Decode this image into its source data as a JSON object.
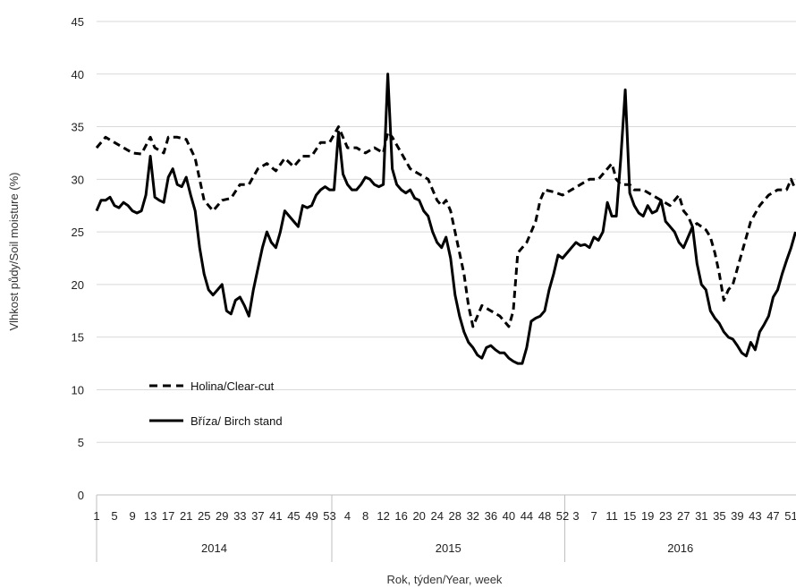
{
  "chart_data": {
    "type": "line",
    "title": "",
    "xlabel": "Rok, týden/Year, week",
    "ylabel": "Vlhkost půdy/Soil moisture (%)",
    "ylim": [
      0,
      45
    ],
    "yticks": [
      0,
      5,
      10,
      15,
      20,
      25,
      30,
      35,
      40,
      45
    ],
    "grid": "horizontal",
    "legend_position": "lower-left",
    "x_tick_labels": [
      "1",
      "5",
      "9",
      "13",
      "17",
      "21",
      "25",
      "29",
      "33",
      "37",
      "41",
      "45",
      "49",
      "53",
      "4",
      "8",
      "12",
      "16",
      "20",
      "24",
      "28",
      "32",
      "36",
      "40",
      "44",
      "48",
      "52",
      "3",
      "7",
      "11",
      "15",
      "19",
      "23",
      "27",
      "31",
      "35",
      "39",
      "43",
      "47",
      "51"
    ],
    "x_tick_index": [
      1,
      5,
      9,
      13,
      17,
      21,
      25,
      29,
      33,
      37,
      41,
      45,
      49,
      53,
      57,
      61,
      65,
      69,
      73,
      77,
      81,
      85,
      89,
      93,
      97,
      101,
      105,
      108,
      112,
      116,
      120,
      124,
      128,
      132,
      136,
      140,
      144,
      148,
      152,
      156
    ],
    "year_groups": [
      {
        "label": "2014",
        "start": 1,
        "end": 53
      },
      {
        "label": "2015",
        "start": 54,
        "end": 105
      },
      {
        "label": "2016",
        "start": 106,
        "end": 157
      }
    ],
    "x_index": "sequential week index: 1-53 = 2014 weeks 1-53, 54-105 = 2015 weeks 1-52, 106-157 = 2016 weeks 1-52",
    "series": [
      {
        "name": "Holina/Clear-cut",
        "style": "dashed",
        "color": "#000000",
        "points": [
          [
            1,
            33
          ],
          [
            3,
            34
          ],
          [
            5,
            33.5
          ],
          [
            9,
            32.5
          ],
          [
            11,
            32.4
          ],
          [
            13,
            34
          ],
          [
            14,
            33
          ],
          [
            16,
            32.5
          ],
          [
            17,
            34
          ],
          [
            19,
            34
          ],
          [
            21,
            33.8
          ],
          [
            23,
            32
          ],
          [
            25,
            28
          ],
          [
            27,
            27
          ],
          [
            29,
            28
          ],
          [
            31,
            28.2
          ],
          [
            33,
            29.5
          ],
          [
            35,
            29.5
          ],
          [
            37,
            31
          ],
          [
            39,
            31.5
          ],
          [
            41,
            30.8
          ],
          [
            43,
            32
          ],
          [
            45,
            31.2
          ],
          [
            47,
            32.2
          ],
          [
            49,
            32.2
          ],
          [
            51,
            33.5
          ],
          [
            53,
            33.5
          ],
          [
            55,
            35
          ],
          [
            57,
            33
          ],
          [
            59,
            33
          ],
          [
            61,
            32.5
          ],
          [
            63,
            33
          ],
          [
            65,
            32.5
          ],
          [
            66,
            34.5
          ],
          [
            67,
            34
          ],
          [
            69,
            32.5
          ],
          [
            71,
            31
          ],
          [
            73,
            30.5
          ],
          [
            75,
            30
          ],
          [
            76,
            29
          ],
          [
            77,
            28
          ],
          [
            78,
            27.5
          ],
          [
            79,
            28
          ],
          [
            80,
            27
          ],
          [
            81,
            25
          ],
          [
            82,
            23
          ],
          [
            83,
            21
          ],
          [
            84,
            18
          ],
          [
            85,
            16
          ],
          [
            86,
            17
          ],
          [
            87,
            18
          ],
          [
            89,
            17.5
          ],
          [
            91,
            17
          ],
          [
            92,
            16.5
          ],
          [
            93,
            16
          ],
          [
            94,
            17.5
          ],
          [
            95,
            23
          ],
          [
            97,
            24
          ],
          [
            99,
            26
          ],
          [
            100,
            28
          ],
          [
            101,
            29
          ],
          [
            103,
            28.8
          ],
          [
            105,
            28.5
          ],
          [
            107,
            29
          ],
          [
            109,
            29.5
          ],
          [
            111,
            30
          ],
          [
            113,
            30
          ],
          [
            115,
            31
          ],
          [
            116,
            31.5
          ],
          [
            117,
            30
          ],
          [
            118,
            29.5
          ],
          [
            120,
            29.5
          ],
          [
            121,
            29
          ],
          [
            123,
            29
          ],
          [
            125,
            28.5
          ],
          [
            127,
            28
          ],
          [
            129,
            27.5
          ],
          [
            131,
            28.5
          ],
          [
            132,
            27
          ],
          [
            133,
            26.5
          ],
          [
            134,
            25.5
          ],
          [
            135,
            25.8
          ],
          [
            137,
            25.2
          ],
          [
            138,
            24.5
          ],
          [
            139,
            23
          ],
          [
            140,
            21
          ],
          [
            141,
            18.5
          ],
          [
            142,
            19.5
          ],
          [
            143,
            20
          ],
          [
            145,
            23
          ],
          [
            147,
            26
          ],
          [
            149,
            27.5
          ],
          [
            151,
            28.5
          ],
          [
            153,
            29
          ],
          [
            155,
            29
          ],
          [
            156,
            30
          ],
          [
            157,
            29
          ]
        ]
      },
      {
        "name": "Bříza/ Birch stand",
        "style": "solid",
        "color": "#000000",
        "points": [
          [
            1,
            27
          ],
          [
            2,
            28
          ],
          [
            3,
            28
          ],
          [
            4,
            28.3
          ],
          [
            5,
            27.5
          ],
          [
            6,
            27.3
          ],
          [
            7,
            27.8
          ],
          [
            8,
            27.5
          ],
          [
            9,
            27
          ],
          [
            10,
            26.8
          ],
          [
            11,
            27
          ],
          [
            12,
            28.5
          ],
          [
            13,
            32.2
          ],
          [
            14,
            28.3
          ],
          [
            15,
            28
          ],
          [
            16,
            27.8
          ],
          [
            17,
            30.2
          ],
          [
            18,
            31
          ],
          [
            19,
            29.5
          ],
          [
            20,
            29.3
          ],
          [
            21,
            30.2
          ],
          [
            22,
            28.5
          ],
          [
            23,
            27
          ],
          [
            24,
            23.5
          ],
          [
            25,
            21
          ],
          [
            26,
            19.5
          ],
          [
            27,
            19
          ],
          [
            28,
            19.5
          ],
          [
            29,
            20
          ],
          [
            30,
            17.5
          ],
          [
            31,
            17.2
          ],
          [
            32,
            18.5
          ],
          [
            33,
            18.8
          ],
          [
            34,
            18
          ],
          [
            35,
            17
          ],
          [
            36,
            19.5
          ],
          [
            37,
            21.5
          ],
          [
            38,
            23.5
          ],
          [
            39,
            25
          ],
          [
            40,
            24
          ],
          [
            41,
            23.5
          ],
          [
            42,
            25
          ],
          [
            43,
            27
          ],
          [
            44,
            26.5
          ],
          [
            45,
            26
          ],
          [
            46,
            25.5
          ],
          [
            47,
            27.5
          ],
          [
            48,
            27.3
          ],
          [
            49,
            27.5
          ],
          [
            50,
            28.5
          ],
          [
            51,
            29
          ],
          [
            52,
            29.3
          ],
          [
            53,
            29
          ],
          [
            54,
            29
          ],
          [
            55,
            34.5
          ],
          [
            56,
            30.5
          ],
          [
            57,
            29.5
          ],
          [
            58,
            29
          ],
          [
            59,
            29
          ],
          [
            60,
            29.5
          ],
          [
            61,
            30.2
          ],
          [
            62,
            30
          ],
          [
            63,
            29.5
          ],
          [
            64,
            29.3
          ],
          [
            65,
            29.5
          ],
          [
            66,
            40
          ],
          [
            67,
            31
          ],
          [
            68,
            29.5
          ],
          [
            69,
            29
          ],
          [
            70,
            28.7
          ],
          [
            71,
            29
          ],
          [
            72,
            28.2
          ],
          [
            73,
            28
          ],
          [
            74,
            27
          ],
          [
            75,
            26.5
          ],
          [
            76,
            25
          ],
          [
            77,
            24
          ],
          [
            78,
            23.5
          ],
          [
            79,
            24.5
          ],
          [
            80,
            22.5
          ],
          [
            81,
            19
          ],
          [
            82,
            17
          ],
          [
            83,
            15.5
          ],
          [
            84,
            14.5
          ],
          [
            85,
            14
          ],
          [
            86,
            13.3
          ],
          [
            87,
            13
          ],
          [
            88,
            14
          ],
          [
            89,
            14.2
          ],
          [
            90,
            13.8
          ],
          [
            91,
            13.5
          ],
          [
            92,
            13.5
          ],
          [
            93,
            13
          ],
          [
            94,
            12.7
          ],
          [
            95,
            12.5
          ],
          [
            96,
            12.5
          ],
          [
            97,
            14
          ],
          [
            98,
            16.5
          ],
          [
            99,
            16.8
          ],
          [
            100,
            17
          ],
          [
            101,
            17.5
          ],
          [
            102,
            19.5
          ],
          [
            103,
            21
          ],
          [
            104,
            22.8
          ],
          [
            105,
            22.5
          ],
          [
            106,
            23
          ],
          [
            107,
            23.5
          ],
          [
            108,
            24
          ],
          [
            109,
            23.7
          ],
          [
            110,
            23.8
          ],
          [
            111,
            23.5
          ],
          [
            112,
            24.5
          ],
          [
            113,
            24.2
          ],
          [
            114,
            25
          ],
          [
            115,
            27.8
          ],
          [
            116,
            26.5
          ],
          [
            117,
            26.5
          ],
          [
            118,
            32
          ],
          [
            119,
            38.5
          ],
          [
            120,
            28.7
          ],
          [
            121,
            27.5
          ],
          [
            122,
            26.8
          ],
          [
            123,
            26.5
          ],
          [
            124,
            27.5
          ],
          [
            125,
            26.8
          ],
          [
            126,
            27
          ],
          [
            127,
            28
          ],
          [
            128,
            26
          ],
          [
            129,
            25.5
          ],
          [
            130,
            25
          ],
          [
            131,
            24
          ],
          [
            132,
            23.5
          ],
          [
            133,
            24.5
          ],
          [
            134,
            25.5
          ],
          [
            135,
            22
          ],
          [
            136,
            20
          ],
          [
            137,
            19.5
          ],
          [
            138,
            17.5
          ],
          [
            139,
            16.8
          ],
          [
            140,
            16.3
          ],
          [
            141,
            15.5
          ],
          [
            142,
            15
          ],
          [
            143,
            14.8
          ],
          [
            144,
            14.2
          ],
          [
            145,
            13.5
          ],
          [
            146,
            13.2
          ],
          [
            147,
            14.5
          ],
          [
            148,
            13.8
          ],
          [
            149,
            15.5
          ],
          [
            150,
            16.2
          ],
          [
            151,
            17
          ],
          [
            152,
            18.8
          ],
          [
            153,
            19.5
          ],
          [
            154,
            21
          ],
          [
            155,
            22.3
          ],
          [
            156,
            23.5
          ],
          [
            157,
            25
          ]
        ]
      }
    ]
  }
}
